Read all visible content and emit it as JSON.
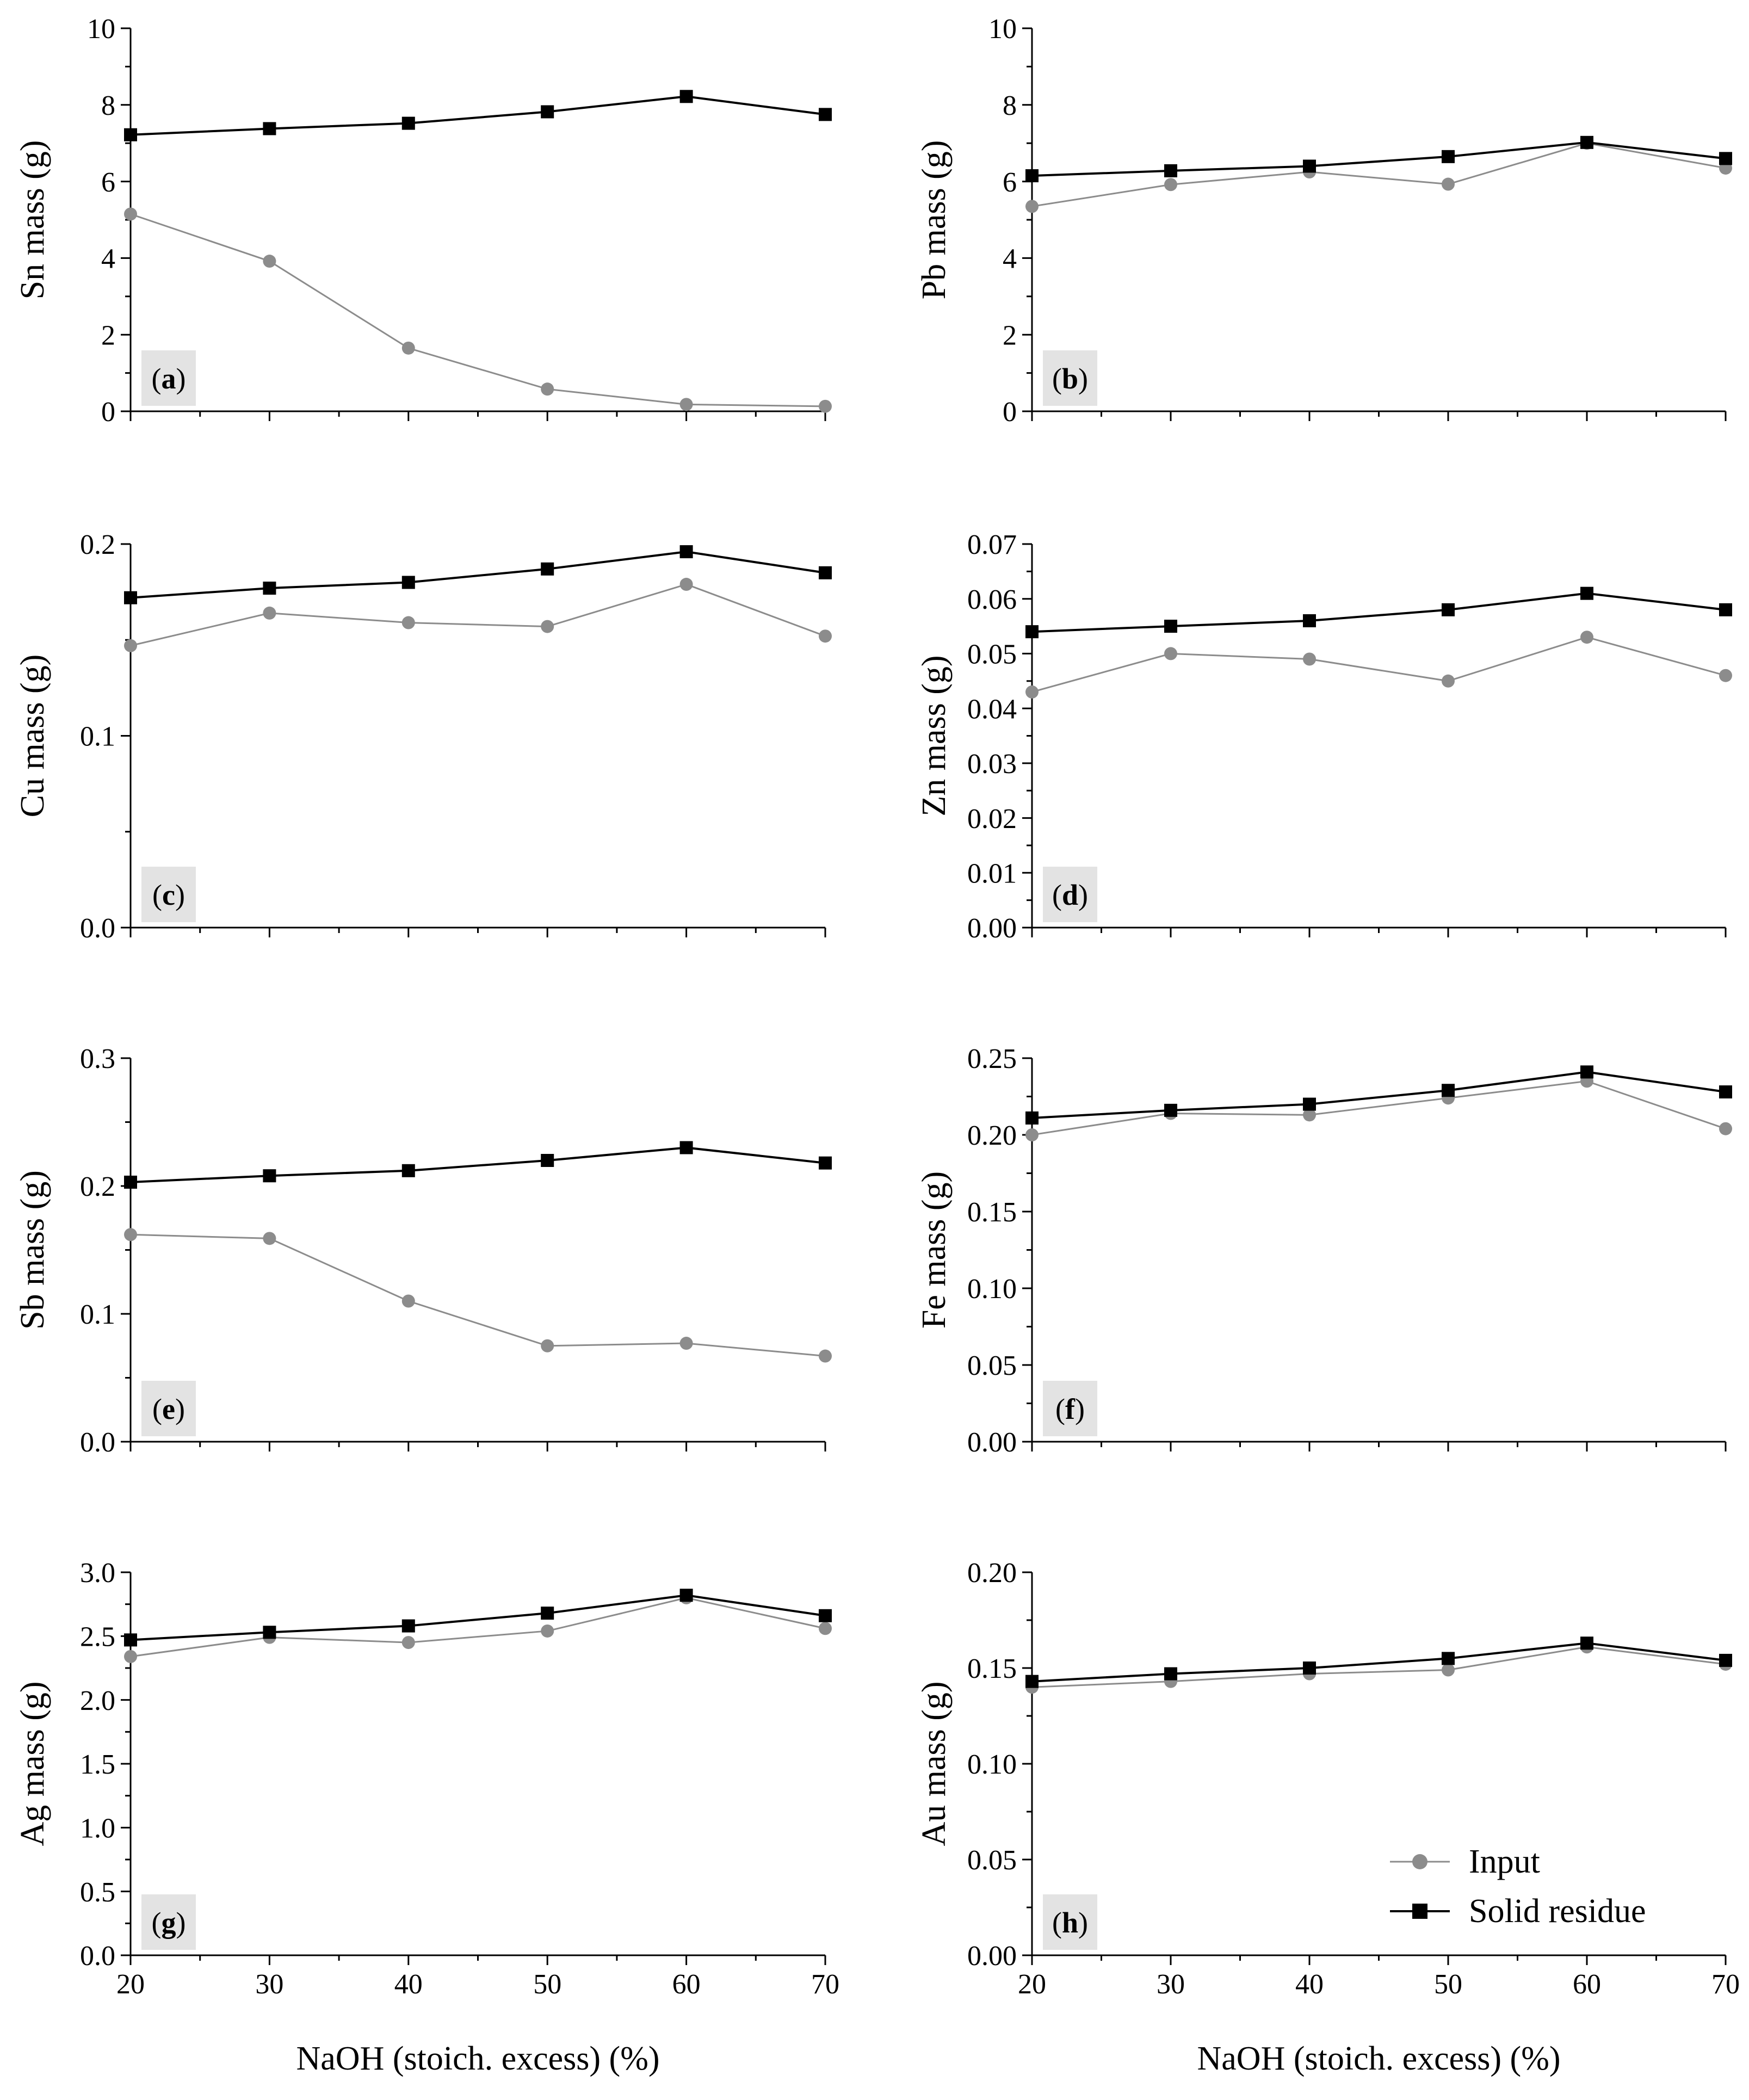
{
  "colors": {
    "input": "#8c8c8c",
    "solid_residue": "#000000",
    "panel_tag_bg": "#e3e3e3"
  },
  "x_axis_label": "NaOH (stoich. excess) (%)",
  "legend": {
    "placement": "bottom-right of panel (h)",
    "items": [
      "Input",
      "Solid residue"
    ]
  },
  "chart_data": [
    {
      "type": "line",
      "panel": "(a)",
      "ylabel": "Sn mass (g)",
      "xlabel": "NaOH (stoich. excess) (%)",
      "x": [
        20,
        30,
        40,
        50,
        60,
        70
      ],
      "xlim": [
        20,
        70
      ],
      "x_ticks": [
        "20",
        "30",
        "40",
        "50",
        "60",
        "70"
      ],
      "ylim": [
        0,
        10
      ],
      "y_ticks": [
        "0",
        "2",
        "4",
        "6",
        "8",
        "10"
      ],
      "series": [
        {
          "name": "Input",
          "values": [
            5.15,
            3.92,
            1.65,
            0.58,
            0.18,
            0.13
          ]
        },
        {
          "name": "Solid residue",
          "values": [
            7.22,
            7.38,
            7.52,
            7.82,
            8.22,
            7.75
          ]
        }
      ]
    },
    {
      "type": "line",
      "panel": "(b)",
      "ylabel": "Pb mass (g)",
      "xlabel": "NaOH (stoich. excess) (%)",
      "x": [
        20,
        30,
        40,
        50,
        60,
        70
      ],
      "xlim": [
        20,
        70
      ],
      "x_ticks": [
        "20",
        "30",
        "40",
        "50",
        "60",
        "70"
      ],
      "ylim": [
        0,
        10
      ],
      "y_ticks": [
        "0",
        "2",
        "4",
        "6",
        "8",
        "10"
      ],
      "series": [
        {
          "name": "Input",
          "values": [
            5.35,
            5.92,
            6.25,
            5.93,
            7.0,
            6.35
          ]
        },
        {
          "name": "Solid residue",
          "values": [
            6.15,
            6.28,
            6.4,
            6.65,
            7.02,
            6.6
          ]
        }
      ]
    },
    {
      "type": "line",
      "panel": "(c)",
      "ylabel": "Cu mass (g)",
      "xlabel": "NaOH (stoich. excess) (%)",
      "x": [
        20,
        30,
        40,
        50,
        60,
        70
      ],
      "xlim": [
        20,
        70
      ],
      "x_ticks": [
        "20",
        "30",
        "40",
        "50",
        "60",
        "70"
      ],
      "ylim": [
        0,
        0.2
      ],
      "y_ticks": [
        "0.0",
        "0.1",
        "0.2"
      ],
      "series": [
        {
          "name": "Input",
          "values": [
            0.147,
            0.164,
            0.159,
            0.157,
            0.179,
            0.152
          ]
        },
        {
          "name": "Solid residue",
          "values": [
            0.172,
            0.177,
            0.18,
            0.187,
            0.196,
            0.185
          ]
        }
      ]
    },
    {
      "type": "line",
      "panel": "(d)",
      "ylabel": "Zn mass (g)",
      "xlabel": "NaOH (stoich. excess) (%)",
      "x": [
        20,
        30,
        40,
        50,
        60,
        70
      ],
      "xlim": [
        20,
        70
      ],
      "x_ticks": [
        "20",
        "30",
        "40",
        "50",
        "60",
        "70"
      ],
      "ylim": [
        0,
        0.07
      ],
      "y_ticks": [
        "0.00",
        "0.01",
        "0.02",
        "0.03",
        "0.04",
        "0.05",
        "0.06",
        "0.07"
      ],
      "series": [
        {
          "name": "Input",
          "values": [
            0.043,
            0.05,
            0.049,
            0.045,
            0.053,
            0.046
          ]
        },
        {
          "name": "Solid residue",
          "values": [
            0.054,
            0.055,
            0.056,
            0.058,
            0.061,
            0.058
          ]
        }
      ]
    },
    {
      "type": "line",
      "panel": "(e)",
      "ylabel": "Sb mass (g)",
      "xlabel": "NaOH (stoich. excess) (%)",
      "x": [
        20,
        30,
        40,
        50,
        60,
        70
      ],
      "xlim": [
        20,
        70
      ],
      "x_ticks": [
        "20",
        "30",
        "40",
        "50",
        "60",
        "70"
      ],
      "ylim": [
        0,
        0.3
      ],
      "y_ticks": [
        "0.0",
        "0.1",
        "0.2",
        "0.3"
      ],
      "series": [
        {
          "name": "Input",
          "values": [
            0.162,
            0.159,
            0.11,
            0.075,
            0.077,
            0.067
          ]
        },
        {
          "name": "Solid residue",
          "values": [
            0.203,
            0.208,
            0.212,
            0.22,
            0.23,
            0.218
          ]
        }
      ]
    },
    {
      "type": "line",
      "panel": "(f)",
      "ylabel": "Fe mass (g)",
      "xlabel": "NaOH (stoich. excess) (%)",
      "x": [
        20,
        30,
        40,
        50,
        60,
        70
      ],
      "xlim": [
        20,
        70
      ],
      "x_ticks": [
        "20",
        "30",
        "40",
        "50",
        "60",
        "70"
      ],
      "ylim": [
        0,
        0.25
      ],
      "y_ticks": [
        "0.00",
        "0.05",
        "0.10",
        "0.15",
        "0.20",
        "0.25"
      ],
      "series": [
        {
          "name": "Input",
          "values": [
            0.2,
            0.214,
            0.213,
            0.224,
            0.235,
            0.204
          ]
        },
        {
          "name": "Solid residue",
          "values": [
            0.211,
            0.216,
            0.22,
            0.229,
            0.241,
            0.228
          ]
        }
      ]
    },
    {
      "type": "line",
      "panel": "(g)",
      "ylabel": "Ag mass (g)",
      "xlabel": "NaOH (stoich. excess) (%)",
      "x": [
        20,
        30,
        40,
        50,
        60,
        70
      ],
      "xlim": [
        20,
        70
      ],
      "x_ticks": [
        "20",
        "30",
        "40",
        "50",
        "60",
        "70"
      ],
      "ylim": [
        0,
        3.0
      ],
      "y_ticks": [
        "0.0",
        "0.5",
        "1.0",
        "1.5",
        "2.0",
        "2.5",
        "3.0"
      ],
      "series": [
        {
          "name": "Input",
          "values": [
            2.34,
            2.49,
            2.45,
            2.54,
            2.8,
            2.56
          ]
        },
        {
          "name": "Solid residue",
          "values": [
            2.47,
            2.53,
            2.58,
            2.68,
            2.82,
            2.66
          ]
        }
      ]
    },
    {
      "type": "line",
      "panel": "(h)",
      "ylabel": "Au mass (g)",
      "xlabel": "NaOH (stoich. excess) (%)",
      "x": [
        20,
        30,
        40,
        50,
        60,
        70
      ],
      "xlim": [
        20,
        70
      ],
      "x_ticks": [
        "20",
        "30",
        "40",
        "50",
        "60",
        "70"
      ],
      "ylim": [
        0,
        0.2
      ],
      "y_ticks": [
        "0.00",
        "0.05",
        "0.10",
        "0.15",
        "0.20"
      ],
      "series": [
        {
          "name": "Input",
          "values": [
            0.14,
            0.143,
            0.147,
            0.149,
            0.161,
            0.152
          ]
        },
        {
          "name": "Solid residue",
          "values": [
            0.143,
            0.147,
            0.15,
            0.155,
            0.163,
            0.154
          ]
        }
      ]
    }
  ]
}
